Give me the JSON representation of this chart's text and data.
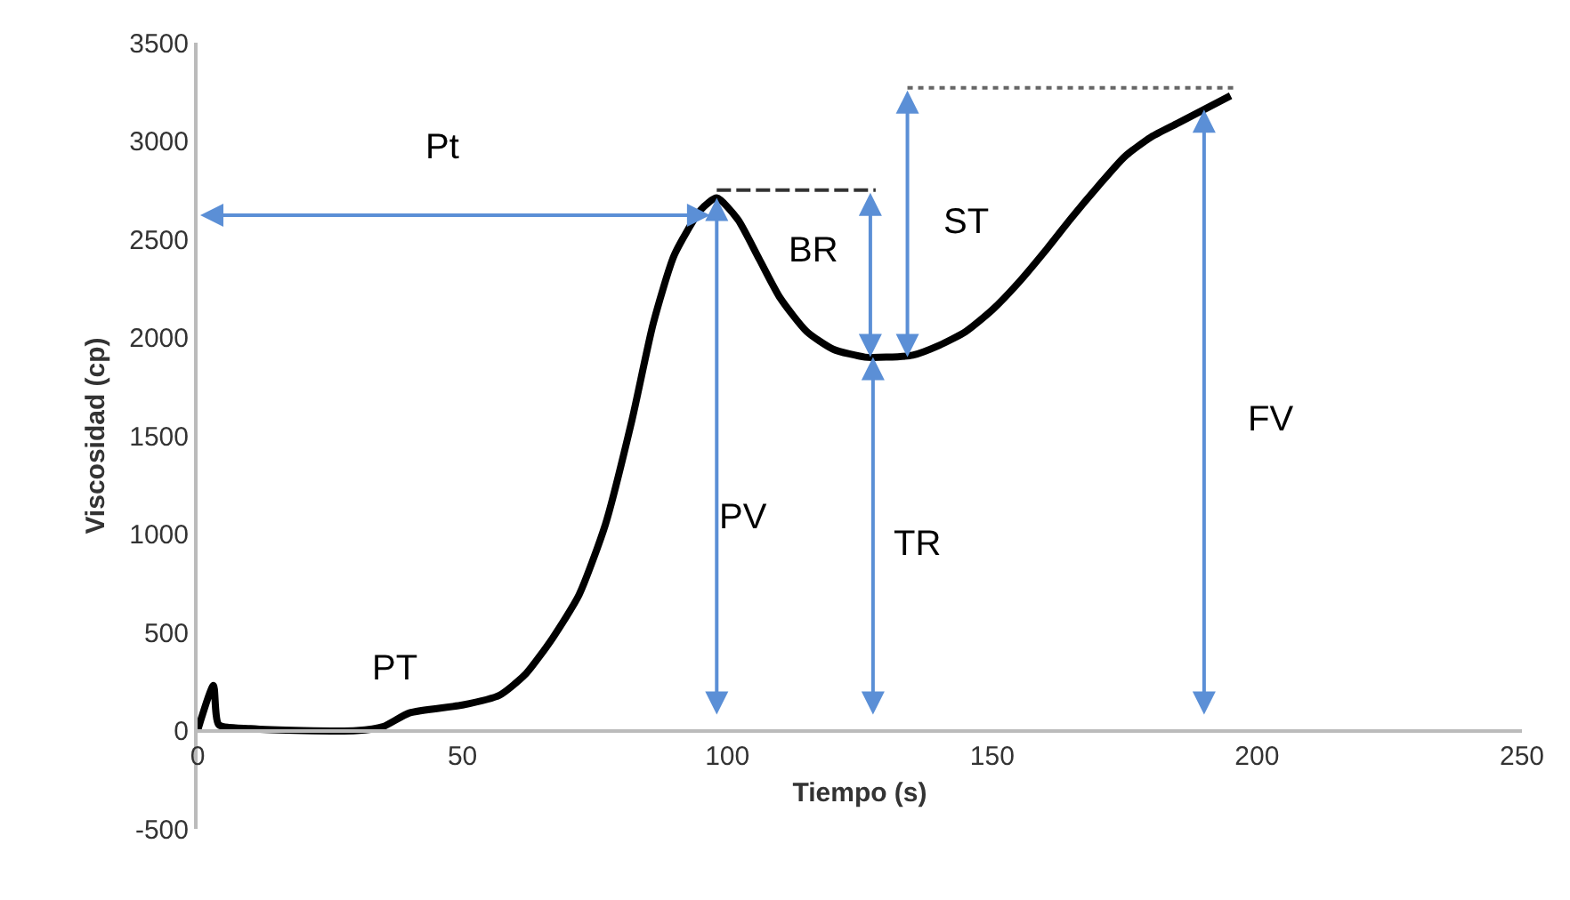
{
  "chart_data": {
    "type": "line",
    "xlabel": "Tiempo (s)",
    "ylabel": "Viscosidad (cp)",
    "x": [
      0,
      3,
      4,
      10,
      20,
      30,
      35,
      40,
      50,
      57,
      62,
      67,
      72,
      77,
      82,
      86,
      90,
      95,
      98,
      102,
      106,
      110,
      115,
      120,
      126,
      130,
      135,
      140,
      145,
      150,
      155,
      160,
      165,
      170,
      175,
      180,
      185,
      190,
      195
    ],
    "series": [
      {
        "color": "#000000",
        "values": [
          0,
          230,
          30,
          10,
          0,
          0,
          20,
          90,
          130,
          180,
          290,
          470,
          690,
          1050,
          1580,
          2070,
          2420,
          2650,
          2710,
          2600,
          2400,
          2200,
          2030,
          1940,
          1900,
          1900,
          1910,
          1960,
          2030,
          2140,
          2280,
          2440,
          2610,
          2770,
          2920,
          3020,
          3090,
          3160,
          3230
        ]
      },
      {
        "type": "line",
        "color": "#333333",
        "line_style": "dashed",
        "x": [
          98,
          128
        ],
        "values": [
          2750,
          2750
        ]
      },
      {
        "type": "line",
        "color": "#666666",
        "line_style": "dotted",
        "x": [
          134,
          196
        ],
        "values": [
          3270,
          3270
        ]
      }
    ],
    "xlim": [
      0,
      250
    ],
    "xticks": [
      0,
      50,
      100,
      150,
      200,
      250
    ],
    "ylim": [
      -500,
      3500
    ],
    "yticks": [
      -500,
      0,
      500,
      1000,
      1500,
      2000,
      2500,
      3000,
      3500
    ],
    "grid": false,
    "marker": "none",
    "line_style": "solid",
    "annotations": [
      "Pt",
      "BR",
      "ST",
      "PV",
      "TR",
      "FV",
      "PT"
    ]
  }
}
